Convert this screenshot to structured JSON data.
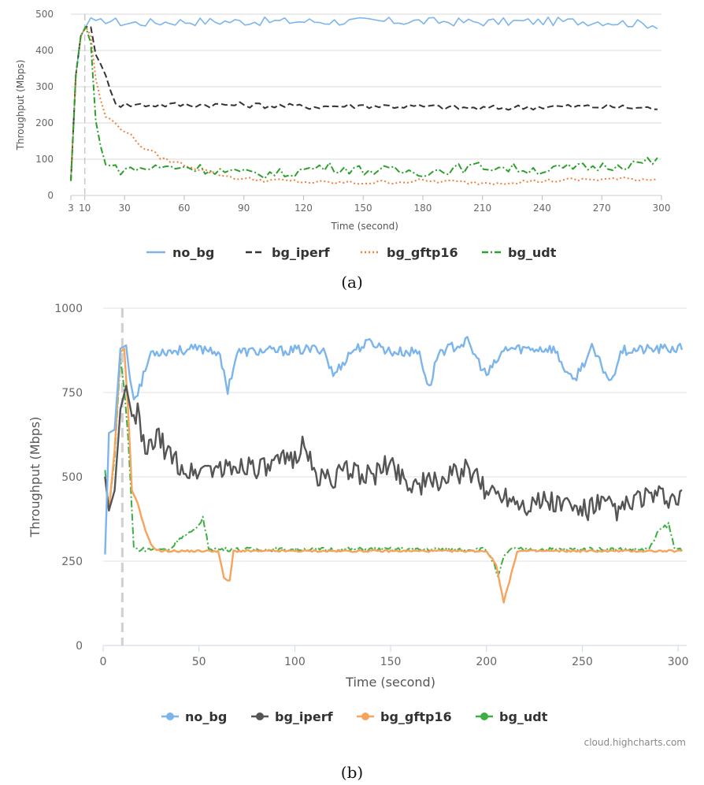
{
  "figure_captions": [
    "(a)",
    "(b)"
  ],
  "chart_data": [
    {
      "type": "line",
      "panel": "a",
      "xlabel": "Time (second)",
      "ylabel": "Throughput (Mbps)",
      "xlim": [
        3,
        300
      ],
      "ylim": [
        0,
        500
      ],
      "xticks": [
        3,
        10,
        30,
        60,
        90,
        120,
        150,
        180,
        210,
        240,
        270,
        300
      ],
      "yticks": [
        0,
        100,
        200,
        300,
        400,
        500
      ],
      "vline_x": 10,
      "legend_position": "bottom-center",
      "series": [
        {
          "name": "no_bg",
          "color": "#7cb5ec",
          "dash": "solid",
          "anchors": [
            [
              3,
              40
            ],
            [
              5,
              310
            ],
            [
              8,
              440
            ],
            [
              11,
              470
            ],
            [
              13,
              490
            ],
            [
              16,
              470
            ],
            [
              20,
              485
            ],
            [
              30,
              475
            ],
            [
              60,
              480
            ],
            [
              90,
              480
            ],
            [
              120,
              480
            ],
            [
              150,
              480
            ],
            [
              180,
              480
            ],
            [
              210,
              478
            ],
            [
              240,
              480
            ],
            [
              270,
              480
            ],
            [
              300,
              470
            ]
          ],
          "noise": 12
        },
        {
          "name": "bg_iperf",
          "color": "#333333",
          "dash": "dashed",
          "anchors": [
            [
              3,
              40
            ],
            [
              5,
              310
            ],
            [
              8,
              440
            ],
            [
              11,
              470
            ],
            [
              13,
              465
            ],
            [
              16,
              380
            ],
            [
              22,
              310
            ],
            [
              26,
              250
            ],
            [
              60,
              250
            ],
            [
              90,
              250
            ],
            [
              120,
              245
            ],
            [
              150,
              248
            ],
            [
              180,
              245
            ],
            [
              210,
              240
            ],
            [
              240,
              245
            ],
            [
              270,
              245
            ],
            [
              300,
              240
            ]
          ],
          "noise": 8
        },
        {
          "name": "bg_gftp16",
          "color": "#f0803c",
          "dash": "dotted",
          "anchors": [
            [
              3,
              40
            ],
            [
              5,
              310
            ],
            [
              8,
              440
            ],
            [
              11,
              470
            ],
            [
              13,
              440
            ],
            [
              16,
              300
            ],
            [
              20,
              220
            ],
            [
              30,
              180
            ],
            [
              40,
              130
            ],
            [
              50,
              100
            ],
            [
              60,
              85
            ],
            [
              70,
              70
            ],
            [
              80,
              55
            ],
            [
              90,
              45
            ],
            [
              110,
              40
            ],
            [
              130,
              35
            ],
            [
              150,
              35
            ],
            [
              180,
              40
            ],
            [
              210,
              35
            ],
            [
              240,
              40
            ],
            [
              270,
              45
            ],
            [
              300,
              45
            ]
          ],
          "noise": 6
        },
        {
          "name": "bg_udt",
          "color": "#2ca02c",
          "dash": "dashdot",
          "anchors": [
            [
              3,
              40
            ],
            [
              5,
              310
            ],
            [
              8,
              440
            ],
            [
              11,
              470
            ],
            [
              13,
              420
            ],
            [
              16,
              160
            ],
            [
              20,
              100
            ],
            [
              26,
              70
            ],
            [
              40,
              75
            ],
            [
              60,
              80
            ],
            [
              75,
              70
            ],
            [
              90,
              60
            ],
            [
              110,
              60
            ],
            [
              130,
              80
            ],
            [
              150,
              70
            ],
            [
              180,
              65
            ],
            [
              210,
              80
            ],
            [
              240,
              70
            ],
            [
              270,
              80
            ],
            [
              300,
              95
            ]
          ],
          "noise": 14
        }
      ]
    },
    {
      "type": "line",
      "panel": "b",
      "xlabel": "Time (second)",
      "ylabel": "Throughput (Mbps)",
      "xlim": [
        0,
        302
      ],
      "ylim": [
        0,
        1000
      ],
      "xticks": [
        0,
        50,
        100,
        150,
        200,
        250,
        300
      ],
      "yticks": [
        0,
        250,
        500,
        750,
        1000
      ],
      "vline_x": 10,
      "legend_position": "bottom-center",
      "credit": "cloud.highcharts.com",
      "series": [
        {
          "name": "no_bg",
          "color": "#7cb5ec",
          "anchors": [
            [
              1,
              270
            ],
            [
              3,
              630
            ],
            [
              6,
              640
            ],
            [
              9,
              880
            ],
            [
              12,
              890
            ],
            [
              14,
              790
            ],
            [
              16,
              730
            ],
            [
              20,
              780
            ],
            [
              25,
              870
            ],
            [
              40,
              875
            ],
            [
              55,
              880
            ],
            [
              60,
              870
            ],
            [
              65,
              760
            ],
            [
              70,
              870
            ],
            [
              100,
              875
            ],
            [
              115,
              880
            ],
            [
              120,
              800
            ],
            [
              130,
              875
            ],
            [
              140,
              900
            ],
            [
              150,
              870
            ],
            [
              165,
              870
            ],
            [
              170,
              760
            ],
            [
              175,
              870
            ],
            [
              190,
              900
            ],
            [
              200,
              800
            ],
            [
              210,
              880
            ],
            [
              235,
              880
            ],
            [
              245,
              780
            ],
            [
              255,
              880
            ],
            [
              265,
              780
            ],
            [
              270,
              875
            ],
            [
              300,
              880
            ]
          ],
          "noise": 15
        },
        {
          "name": "bg_iperf",
          "color": "#555555",
          "anchors": [
            [
              1,
              500
            ],
            [
              3,
              400
            ],
            [
              6,
              460
            ],
            [
              9,
              700
            ],
            [
              12,
              770
            ],
            [
              15,
              680
            ],
            [
              18,
              690
            ],
            [
              22,
              560
            ],
            [
              28,
              620
            ],
            [
              35,
              560
            ],
            [
              45,
              510
            ],
            [
              55,
              530
            ],
            [
              65,
              520
            ],
            [
              75,
              540
            ],
            [
              85,
              520
            ],
            [
              100,
              560
            ],
            [
              105,
              610
            ],
            [
              110,
              500
            ],
            [
              120,
              500
            ],
            [
              130,
              520
            ],
            [
              140,
              500
            ],
            [
              150,
              540
            ],
            [
              160,
              480
            ],
            [
              170,
              480
            ],
            [
              180,
              500
            ],
            [
              190,
              520
            ],
            [
              200,
              460
            ],
            [
              210,
              450
            ],
            [
              220,
              420
            ],
            [
              230,
              430
            ],
            [
              240,
              420
            ],
            [
              250,
              400
            ],
            [
              260,
              420
            ],
            [
              270,
              400
            ],
            [
              280,
              440
            ],
            [
              290,
              440
            ],
            [
              300,
              430
            ]
          ],
          "noise": 35
        },
        {
          "name": "bg_gftp16",
          "color": "#f7a35c",
          "anchors": [
            [
              1,
              500
            ],
            [
              3,
              400
            ],
            [
              6,
              580
            ],
            [
              9,
              870
            ],
            [
              11,
              880
            ],
            [
              13,
              700
            ],
            [
              15,
              460
            ],
            [
              18,
              420
            ],
            [
              22,
              340
            ],
            [
              26,
              290
            ],
            [
              30,
              280
            ],
            [
              60,
              280
            ],
            [
              63,
              200
            ],
            [
              66,
              190
            ],
            [
              68,
              280
            ],
            [
              200,
              280
            ],
            [
              205,
              240
            ],
            [
              209,
              130
            ],
            [
              212,
              190
            ],
            [
              216,
              280
            ],
            [
              300,
              280
            ]
          ],
          "noise": 3
        },
        {
          "name": "bg_udt",
          "color": "#3cb043",
          "anchors": [
            [
              1,
              520
            ],
            [
              3,
              400
            ],
            [
              6,
              560
            ],
            [
              9,
              850
            ],
            [
              11,
              760
            ],
            [
              13,
              620
            ],
            [
              16,
              290
            ],
            [
              18,
              285
            ],
            [
              35,
              285
            ],
            [
              40,
              320
            ],
            [
              48,
              340
            ],
            [
              52,
              380
            ],
            [
              55,
              290
            ],
            [
              60,
              285
            ],
            [
              200,
              285
            ],
            [
              204,
              240
            ],
            [
              206,
              200
            ],
            [
              209,
              260
            ],
            [
              212,
              285
            ],
            [
              285,
              285
            ],
            [
              290,
              340
            ],
            [
              295,
              360
            ],
            [
              298,
              290
            ],
            [
              302,
              285
            ]
          ],
          "noise": 6
        }
      ]
    }
  ]
}
